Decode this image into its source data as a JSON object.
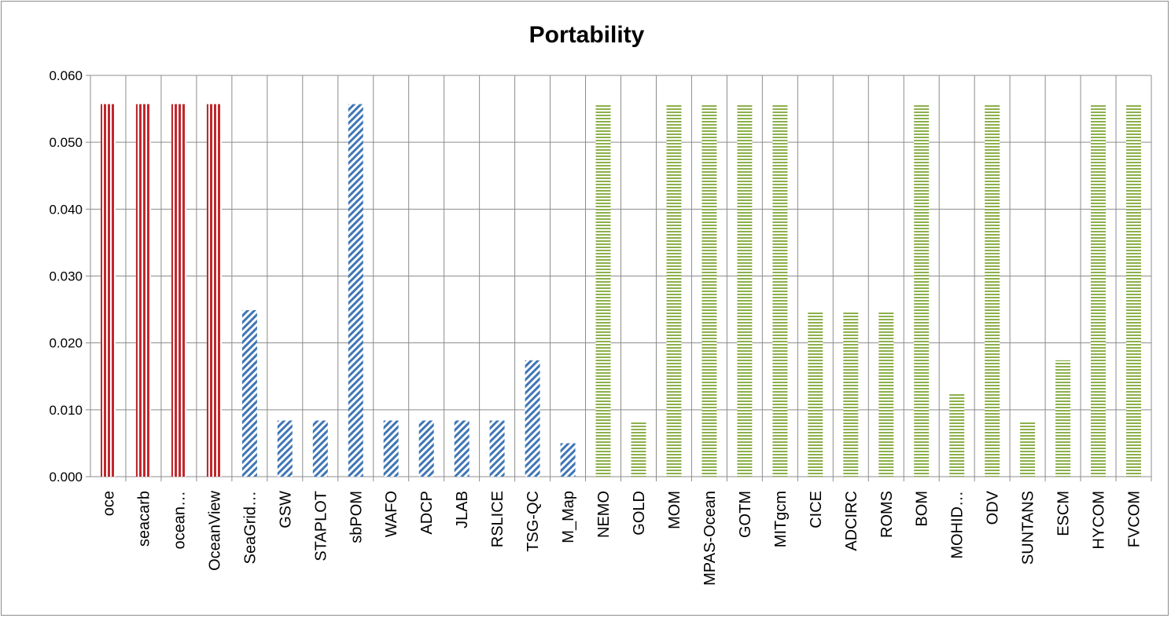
{
  "chart_data": {
    "type": "bar",
    "title": "Portability",
    "xlabel": "",
    "ylabel": "",
    "ylim": [
      0,
      0.06
    ],
    "yticks": [
      "0.000",
      "0.010",
      "0.020",
      "0.030",
      "0.040",
      "0.050",
      "0.060"
    ],
    "grid": true,
    "legend": "none",
    "categories": [
      "oce",
      "seacarb",
      "ocean…",
      "OceanView",
      "SeaGrid…",
      "GSW",
      "STAPLOT",
      "sbPOM",
      "WAFO",
      "ADCP",
      "JLAB",
      "RSLICE",
      "TSG-QC",
      "M_Map",
      "NEMO",
      "GOLD",
      "MOM",
      "MPAS-Ocean",
      "GOTM",
      "MITgcm",
      "CICE",
      "ADCIRC",
      "ROMS",
      "BOM",
      "MOHID…",
      "ODV",
      "SUNTANS",
      "ESCM",
      "HYCOM",
      "FVCOM"
    ],
    "values": [
      0.0557,
      0.0557,
      0.0557,
      0.0557,
      0.0249,
      0.0084,
      0.0084,
      0.0557,
      0.0084,
      0.0084,
      0.0084,
      0.0084,
      0.0174,
      0.005,
      0.0557,
      0.0082,
      0.0557,
      0.0557,
      0.0557,
      0.0557,
      0.0247,
      0.0247,
      0.0247,
      0.0557,
      0.0124,
      0.0557,
      0.0082,
      0.0174,
      0.0557,
      0.0557
    ],
    "group": [
      "red",
      "red",
      "red",
      "red",
      "blue",
      "blue",
      "blue",
      "blue",
      "blue",
      "blue",
      "blue",
      "blue",
      "blue",
      "blue",
      "green",
      "green",
      "green",
      "green",
      "green",
      "green",
      "green",
      "green",
      "green",
      "green",
      "green",
      "green",
      "green",
      "green",
      "green",
      "green"
    ],
    "colors": {
      "red": "#c0282d",
      "blue": "#3f76b5",
      "green": "#8db04c",
      "grid": "#8c8c8c",
      "axis": "#8c8c8c"
    },
    "patterns": {
      "red": "vertical-stripes",
      "blue": "diagonal-stripes",
      "green": "horizontal-stripes"
    }
  }
}
